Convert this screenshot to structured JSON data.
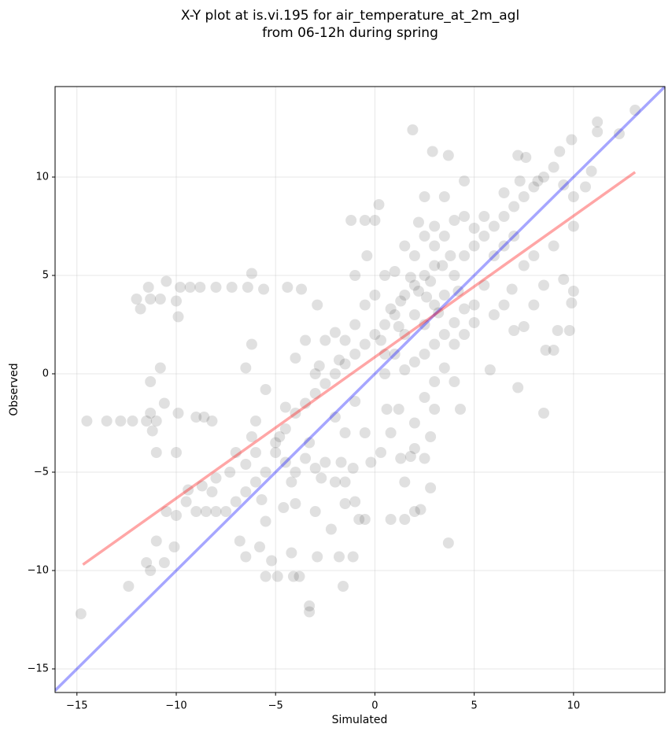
{
  "chart_data": {
    "type": "scatter",
    "title": [
      "X-Y plot at is.vi.195 for air_temperature_at_2m_agl",
      "from 06-12h during spring"
    ],
    "x_label": "Simulated",
    "y_label": "Observed",
    "xlim": [
      -16.1,
      14.6
    ],
    "ylim": [
      -16.2,
      14.6
    ],
    "xticks": [
      {
        "value": -15,
        "label": "−15"
      },
      {
        "value": -10,
        "label": "−10"
      },
      {
        "value": -5,
        "label": "−5"
      },
      0,
      5,
      10
    ],
    "yticks": [
      {
        "value": -15,
        "label": "−15"
      },
      {
        "value": -10,
        "label": "−10"
      },
      {
        "value": -5,
        "label": "−5"
      },
      0,
      5,
      10
    ],
    "grid": true,
    "series": [
      {
        "color": "#000000",
        "alpha": 0.12,
        "x": [
          -14.8,
          -12.4,
          -11.5,
          -11.3,
          -10.6,
          -10.1,
          -11,
          -12,
          -11.8,
          -11.4,
          -11.3,
          -10.8,
          -10,
          -9.9,
          -9.8,
          -9.3,
          -8.8,
          -8,
          -7.2,
          -6.4,
          -6.2,
          -5.6,
          -4.4,
          -3.7,
          -10.5,
          -14.5,
          -13.5,
          -12.8,
          -12.2,
          -11.5,
          -11.3,
          -11.2,
          -11,
          -11.3,
          -10.8,
          -10.6,
          -11,
          -10,
          -9,
          -8.6,
          -9.9,
          -8.2,
          -6.2,
          -6.5,
          -5.5,
          -2.9,
          -1,
          -6.5,
          -5.8,
          -5.2,
          -5.5,
          -4.9,
          -4.1,
          -3.8,
          -4.2,
          -3.3,
          -3.3,
          -2.9,
          -1.8,
          -1.1,
          -1.6,
          -2.2,
          8.5,
          7.2,
          9,
          8.6,
          9.2,
          9.8,
          9.9,
          10,
          11.2,
          11.2,
          13.1,
          12.3,
          10.9,
          10.6,
          9.9,
          9.3,
          7.6,
          7.2,
          3.7,
          1.9,
          2.9,
          3.7,
          0,
          0.5,
          1,
          1.5,
          2,
          2.5,
          3,
          1,
          0.5,
          1.5,
          2,
          2.5,
          3,
          3.5,
          4,
          4.5,
          5,
          5.5,
          6,
          6.5,
          7,
          7.5,
          8,
          8.5,
          9,
          2,
          2.5,
          3,
          3.5,
          4,
          4.5,
          5,
          5.5,
          6,
          6.5,
          7,
          7.5,
          8,
          6.5,
          7,
          7.5,
          8,
          5.5,
          5,
          4.5,
          4,
          3.5,
          3,
          2.5,
          2,
          1.8,
          1.2,
          0.6,
          -0.2,
          0.3,
          0.8,
          1.5,
          2.3,
          2,
          1.5,
          0.8,
          -0.5,
          -0.8,
          -1,
          -1.5,
          -2,
          -2.5,
          -3,
          -3.5,
          -4,
          -4.5,
          -5,
          -5.5,
          -6,
          -6.5,
          -7,
          -7.5,
          -8,
          -8.5,
          -9,
          -9.5,
          -10,
          -10.5,
          -6,
          -5,
          -4.5,
          -4,
          -3.5,
          -3,
          -2.5,
          -2,
          -1.5,
          -1,
          -0.5,
          -4,
          -3,
          -2.5,
          -2,
          -1.5,
          -1,
          -0.5,
          0,
          0.5,
          1,
          0,
          -0.5,
          -1.2,
          0.2,
          -0.4,
          -3.5,
          -1.8,
          -2.8,
          -4.5,
          -6,
          -7,
          -8,
          -8.7,
          -6.5,
          -5.7,
          -5.5,
          -6.8,
          -4.6,
          -4,
          -3,
          -1.5,
          -0.5,
          -1.5,
          -2,
          -1,
          0.5,
          1.5,
          2,
          2.5,
          3,
          3.5,
          4,
          4.5,
          5,
          1.5,
          2.2,
          2.5,
          3.5,
          4.5,
          6.5,
          7.3,
          8.2,
          9.5,
          10,
          3,
          4.3,
          2,
          2.8,
          2.8,
          4,
          5.8,
          6,
          6.9,
          8.5,
          9.5,
          9,
          10,
          3,
          3.4,
          2.8,
          1.3,
          0.8,
          1.8,
          2.2,
          2.6,
          3.2,
          4.2,
          3.8,
          1.2,
          0.3,
          2.5,
          1.3,
          -1.7,
          -3.3,
          -4.8,
          -6.2,
          -7.3,
          -8.2,
          -9.4,
          -4.2,
          -2.7,
          -1.1
        ],
        "y": [
          -12.2,
          -10.8,
          -9.6,
          -10,
          -9.6,
          -8.8,
          -8.5,
          3.8,
          3.3,
          4.4,
          3.8,
          3.8,
          3.7,
          2.9,
          4.4,
          4.4,
          4.4,
          4.4,
          4.4,
          4.4,
          5.1,
          4.3,
          4.4,
          4.3,
          4.7,
          -2.4,
          -2.4,
          -2.4,
          -2.4,
          -2.4,
          -2,
          -2.9,
          -2.4,
          -0.4,
          0.3,
          -1.5,
          -4,
          -4,
          -2.2,
          -2.2,
          -2,
          -2.4,
          1.5,
          0.3,
          -0.8,
          3.5,
          5,
          -9.3,
          -8.8,
          -9.5,
          -10.3,
          -10.3,
          -10.3,
          -10.3,
          -9.1,
          -11.8,
          -12.1,
          -9.3,
          -9.3,
          -9.3,
          -10.8,
          -7.9,
          -2,
          -0.7,
          1.2,
          1.2,
          2.2,
          2.2,
          3.6,
          4.2,
          12.8,
          12.3,
          13.4,
          12.2,
          10.3,
          9.5,
          11.9,
          11.3,
          11,
          11.1,
          -8.6,
          12.4,
          11.3,
          11.1,
          2,
          2.5,
          3,
          4,
          4.5,
          5,
          5.5,
          1,
          1,
          2,
          3,
          2.5,
          3.5,
          4,
          5,
          6,
          6.5,
          7,
          7.5,
          8,
          8.5,
          9,
          9.5,
          10,
          10.5,
          6,
          7,
          7.5,
          7,
          7.8,
          8,
          7.4,
          8,
          6,
          6.5,
          7,
          5.5,
          6,
          3.5,
          2.2,
          2.4,
          3.5,
          4.5,
          2.6,
          2,
          1.5,
          0.3,
          -0.4,
          -1.2,
          -3.8,
          -4.2,
          -1.8,
          -1.8,
          -4.5,
          -4,
          -3,
          -5.5,
          -6.9,
          -7,
          -7.4,
          -7.4,
          -7.4,
          -7.4,
          -6.5,
          -5.5,
          -5.5,
          -4.5,
          -4.8,
          -4.3,
          -5,
          -4.5,
          -4,
          -5,
          -5.5,
          -6,
          -6.5,
          -7,
          -7,
          -7,
          -7,
          -6.5,
          -7.2,
          -7,
          -4,
          -3.5,
          -2.8,
          -2,
          -1.5,
          -1,
          -0.5,
          0,
          0.5,
          1,
          1.5,
          0.8,
          0,
          1.7,
          2.1,
          1.7,
          2.5,
          3.5,
          4,
          5,
          5.2,
          7.8,
          7.8,
          7.8,
          8.6,
          6,
          1.7,
          0.7,
          0.4,
          -1.7,
          -2.4,
          -4,
          -5.3,
          -5.7,
          -4.6,
          -6.4,
          -7.5,
          -8.5,
          -6.8,
          -6.6,
          -7,
          -6.6,
          -3,
          -3,
          -2.2,
          -1.4,
          0,
          0.2,
          0.6,
          1,
          1.5,
          2,
          2.6,
          3.3,
          3.5,
          6.5,
          7.7,
          9,
          9,
          9.8,
          9.2,
          9.8,
          9.8,
          9.6,
          9,
          -1.8,
          -1.8,
          -2.5,
          -5.8,
          -3.2,
          -0.4,
          0.2,
          3,
          4.3,
          4.5,
          4.8,
          6.5,
          7.5,
          6.5,
          5.5,
          4.7,
          3.7,
          3.3,
          4.9,
          4.2,
          3.9,
          3.1,
          4.2,
          6,
          2.4,
          1.7,
          -4.3,
          -4.3,
          -4.5,
          -3.5,
          -3.2,
          -3.2,
          -5,
          -6,
          -5.9,
          -5.5,
          -5.3,
          -4.8
        ]
      }
    ],
    "lines": [
      {
        "color": "#0000ff",
        "alpha": 0.35,
        "x": [
          -16.1,
          14.6
        ],
        "y": [
          -16.1,
          14.6
        ]
      },
      {
        "color": "#ff0000",
        "alpha": 0.35,
        "x": [
          -14.7,
          13.1
        ],
        "y": [
          -9.7,
          10.25
        ]
      }
    ]
  }
}
